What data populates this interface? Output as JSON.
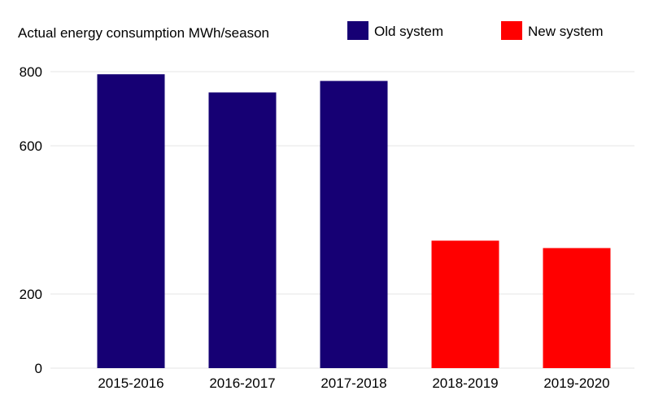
{
  "chart_data": {
    "type": "bar",
    "title": "Actual energy consumption MWh/season",
    "xlabel": "",
    "ylabel": "",
    "categories": [
      "2015-2016",
      "2016-2017",
      "2017-2018",
      "2018-2019",
      "2019-2020"
    ],
    "values": [
      793,
      744,
      775,
      344,
      324
    ],
    "bar_series": [
      "Old system",
      "Old system",
      "Old system",
      "New system",
      "New system"
    ],
    "series": [
      {
        "name": "Old system",
        "color": "#160074"
      },
      {
        "name": "New system",
        "color": "#ff0000"
      }
    ],
    "yticks": [
      0,
      200,
      600,
      800
    ],
    "ylim": [
      0,
      820
    ],
    "grid": true,
    "legend_position": "top"
  }
}
